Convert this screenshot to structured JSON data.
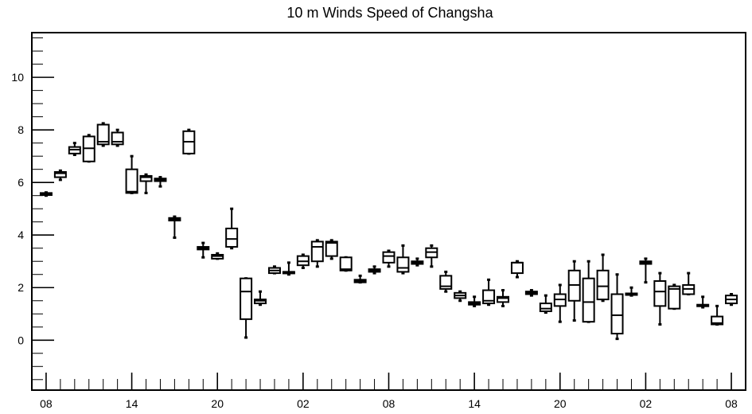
{
  "chart_data": {
    "type": "box",
    "title": "10 m Winds Speed of Changsha",
    "xlabel": "",
    "ylabel": "",
    "ylim": [
      -1.9,
      11.7
    ],
    "y_ticks": [
      "0",
      "2",
      "4",
      "6",
      "8",
      "10"
    ],
    "y_tick_values": [
      0,
      2,
      4,
      6,
      8,
      10
    ],
    "x_tick_labels": [
      "08",
      "14",
      "20",
      "02",
      "08",
      "14",
      "20",
      "02",
      "08"
    ],
    "x_tick_hours": [
      0,
      6,
      12,
      18,
      24,
      30,
      36,
      42,
      48
    ],
    "x_range_hours": [
      -1,
      49
    ],
    "grid": false,
    "boxes": [
      {
        "hour": 0,
        "min": 5.5,
        "q1": 5.52,
        "median": 5.55,
        "q3": 5.6,
        "max": 5.62
      },
      {
        "hour": 1,
        "min": 6.1,
        "q1": 6.2,
        "median": 6.35,
        "q3": 6.4,
        "max": 6.45
      },
      {
        "hour": 2,
        "min": 7.05,
        "q1": 7.1,
        "median": 7.25,
        "q3": 7.35,
        "max": 7.5
      },
      {
        "hour": 3,
        "min": 6.8,
        "q1": 6.8,
        "median": 7.3,
        "q3": 7.75,
        "max": 7.8
      },
      {
        "hour": 4,
        "min": 7.4,
        "q1": 7.45,
        "median": 7.55,
        "q3": 8.2,
        "max": 8.25
      },
      {
        "hour": 5,
        "min": 7.4,
        "q1": 7.45,
        "median": 7.55,
        "q3": 7.9,
        "max": 8.0
      },
      {
        "hour": 6,
        "min": 5.6,
        "q1": 5.6,
        "median": 5.65,
        "q3": 6.5,
        "max": 7.0
      },
      {
        "hour": 7,
        "min": 5.6,
        "q1": 6.05,
        "median": 6.2,
        "q3": 6.25,
        "max": 6.3
      },
      {
        "hour": 8,
        "min": 5.85,
        "q1": 6.05,
        "median": 6.1,
        "q3": 6.15,
        "max": 6.2
      },
      {
        "hour": 9,
        "min": 3.9,
        "q1": 4.55,
        "median": 4.6,
        "q3": 4.65,
        "max": 4.7
      },
      {
        "hour": 10,
        "min": 7.1,
        "q1": 7.1,
        "median": 7.55,
        "q3": 7.95,
        "max": 8.0
      },
      {
        "hour": 11,
        "min": 3.15,
        "q1": 3.45,
        "median": 3.5,
        "q3": 3.55,
        "max": 3.7
      },
      {
        "hour": 12,
        "min": 3.1,
        "q1": 3.1,
        "median": 3.2,
        "q3": 3.25,
        "max": 3.3
      },
      {
        "hour": 13,
        "min": 3.5,
        "q1": 3.55,
        "median": 3.85,
        "q3": 4.25,
        "max": 5.0
      },
      {
        "hour": 14,
        "min": 0.1,
        "q1": 0.8,
        "median": 1.85,
        "q3": 2.35,
        "max": 2.35
      },
      {
        "hour": 15,
        "min": 1.35,
        "q1": 1.4,
        "median": 1.5,
        "q3": 1.55,
        "max": 1.85
      },
      {
        "hour": 16,
        "min": 2.55,
        "q1": 2.55,
        "median": 2.65,
        "q3": 2.75,
        "max": 2.8
      },
      {
        "hour": 17,
        "min": 2.5,
        "q1": 2.55,
        "median": 2.6,
        "q3": 2.6,
        "max": 2.95
      },
      {
        "hour": 18,
        "min": 2.75,
        "q1": 2.85,
        "median": 3.0,
        "q3": 3.2,
        "max": 3.25
      },
      {
        "hour": 19,
        "min": 2.8,
        "q1": 3.0,
        "median": 3.55,
        "q3": 3.75,
        "max": 3.8
      },
      {
        "hour": 20,
        "min": 3.1,
        "q1": 3.2,
        "median": 3.7,
        "q3": 3.75,
        "max": 3.8
      },
      {
        "hour": 21,
        "min": 2.65,
        "q1": 2.65,
        "median": 2.7,
        "q3": 3.15,
        "max": 3.15
      },
      {
        "hour": 22,
        "min": 2.2,
        "q1": 2.2,
        "median": 2.25,
        "q3": 2.3,
        "max": 2.45
      },
      {
        "hour": 23,
        "min": 2.55,
        "q1": 2.6,
        "median": 2.65,
        "q3": 2.7,
        "max": 2.8
      },
      {
        "hour": 24,
        "min": 2.8,
        "q1": 2.95,
        "median": 3.2,
        "q3": 3.35,
        "max": 3.4
      },
      {
        "hour": 25,
        "min": 2.55,
        "q1": 2.6,
        "median": 2.75,
        "q3": 3.15,
        "max": 3.6
      },
      {
        "hour": 26,
        "min": 2.85,
        "q1": 2.9,
        "median": 2.95,
        "q3": 3.0,
        "max": 3.1
      },
      {
        "hour": 27,
        "min": 2.8,
        "q1": 3.15,
        "median": 3.35,
        "q3": 3.5,
        "max": 3.6
      },
      {
        "hour": 28,
        "min": 1.85,
        "q1": 1.95,
        "median": 2.05,
        "q3": 2.45,
        "max": 2.6
      },
      {
        "hour": 29,
        "min": 1.5,
        "q1": 1.6,
        "median": 1.7,
        "q3": 1.8,
        "max": 1.85
      },
      {
        "hour": 30,
        "min": 1.3,
        "q1": 1.35,
        "median": 1.4,
        "q3": 1.45,
        "max": 1.65
      },
      {
        "hour": 31,
        "min": 1.35,
        "q1": 1.4,
        "median": 1.5,
        "q3": 1.9,
        "max": 2.3
      },
      {
        "hour": 32,
        "min": 1.3,
        "q1": 1.45,
        "median": 1.6,
        "q3": 1.65,
        "max": 1.9
      },
      {
        "hour": 33,
        "min": 2.4,
        "q1": 2.55,
        "median": 2.95,
        "q3": 2.95,
        "max": 3.0
      },
      {
        "hour": 34,
        "min": 1.7,
        "q1": 1.75,
        "median": 1.8,
        "q3": 1.85,
        "max": 1.9
      },
      {
        "hour": 35,
        "min": 1.05,
        "q1": 1.1,
        "median": 1.2,
        "q3": 1.4,
        "max": 1.7
      },
      {
        "hour": 36,
        "min": 0.7,
        "q1": 1.3,
        "median": 1.55,
        "q3": 1.75,
        "max": 2.1
      },
      {
        "hour": 37,
        "min": 0.75,
        "q1": 1.5,
        "median": 2.1,
        "q3": 2.65,
        "max": 3.0
      },
      {
        "hour": 38,
        "min": 0.7,
        "q1": 0.7,
        "median": 1.45,
        "q3": 2.35,
        "max": 3.0
      },
      {
        "hour": 39,
        "min": 1.5,
        "q1": 1.55,
        "median": 2.05,
        "q3": 2.65,
        "max": 3.25
      },
      {
        "hour": 40,
        "min": 0.05,
        "q1": 0.25,
        "median": 0.95,
        "q3": 1.75,
        "max": 2.5
      },
      {
        "hour": 41,
        "min": 1.7,
        "q1": 1.72,
        "median": 1.75,
        "q3": 1.78,
        "max": 2.0
      },
      {
        "hour": 42,
        "min": 2.2,
        "q1": 2.9,
        "median": 2.95,
        "q3": 3.0,
        "max": 3.1
      },
      {
        "hour": 43,
        "min": 0.6,
        "q1": 1.3,
        "median": 1.85,
        "q3": 2.25,
        "max": 2.55
      },
      {
        "hour": 44,
        "min": 1.2,
        "q1": 1.2,
        "median": 1.95,
        "q3": 2.05,
        "max": 2.1
      },
      {
        "hour": 45,
        "min": 1.75,
        "q1": 1.75,
        "median": 1.95,
        "q3": 2.1,
        "max": 2.55
      },
      {
        "hour": 46,
        "min": 1.25,
        "q1": 1.3,
        "median": 1.3,
        "q3": 1.35,
        "max": 1.65
      },
      {
        "hour": 47,
        "min": 0.6,
        "q1": 0.6,
        "median": 0.65,
        "q3": 0.9,
        "max": 1.3
      },
      {
        "hour": 48,
        "min": 1.35,
        "q1": 1.4,
        "median": 1.55,
        "q3": 1.7,
        "max": 1.75
      }
    ]
  }
}
